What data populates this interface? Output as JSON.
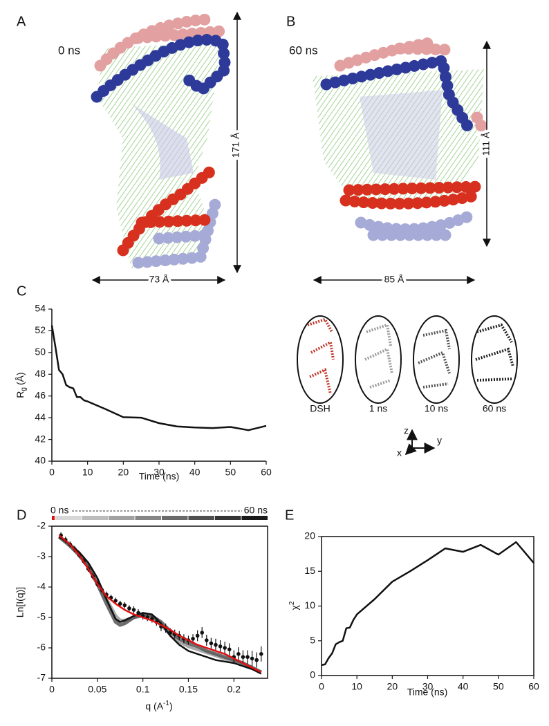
{
  "panels": {
    "a": {
      "label": "A",
      "time": "0 ns",
      "height": "171 Å",
      "width": "73 Å"
    },
    "b": {
      "label": "B",
      "time": "60 ns",
      "height": "111 Å",
      "width": "85 Å"
    },
    "c": "C",
    "d": "D",
    "e": "E"
  },
  "insets": {
    "labels": [
      "DSH",
      "1 ns",
      "10 ns",
      "60 ns"
    ],
    "axes": {
      "z": "z",
      "y": "y",
      "x": "x"
    }
  },
  "chart_data": [
    {
      "type": "line",
      "xlabel": "Time (ns)",
      "ylabel": {
        "base": "R",
        "sub": "g",
        "unit": "(Å)"
      },
      "xlim": [
        0,
        60
      ],
      "ylim": [
        40,
        54
      ],
      "xticks": [
        0,
        10,
        20,
        30,
        40,
        50,
        60
      ],
      "yticks": [
        40,
        42,
        44,
        46,
        48,
        50,
        52,
        54
      ],
      "series": [
        {
          "color": "#111111",
          "x": [
            0,
            1,
            2,
            3,
            4,
            5,
            6,
            7,
            8,
            9,
            10,
            15,
            20,
            25,
            30,
            35,
            40,
            45,
            50,
            55,
            60
          ],
          "values": [
            52.5,
            50.5,
            48.4,
            48.0,
            47.0,
            46.8,
            46.7,
            45.9,
            45.9,
            45.6,
            45.5,
            44.8,
            44.05,
            44.0,
            43.5,
            43.2,
            43.1,
            43.05,
            43.15,
            42.85,
            43.25
          ]
        }
      ]
    },
    {
      "type": "line",
      "xlabel": {
        "base": "q (A",
        "sup": "-1",
        "end": ")"
      },
      "ylabel": "Ln[I(q)]",
      "legend": {
        "start": "0 ns",
        "end": "60 ns"
      },
      "xlim": [
        0,
        0.237
      ],
      "ylim": [
        -7,
        -2
      ],
      "xticks": [
        0,
        0.05,
        0.1,
        0.15,
        0.2
      ],
      "yticks": [
        -7,
        -6,
        -5,
        -4,
        -3,
        -2
      ],
      "series": [
        {
          "color": "#999999",
          "x": [
            0.008,
            0.02,
            0.03,
            0.04,
            0.05,
            0.06,
            0.07,
            0.075,
            0.08,
            0.09,
            0.1,
            0.11,
            0.12,
            0.13,
            0.14,
            0.15,
            0.16,
            0.17,
            0.18,
            0.19,
            0.2,
            0.21,
            0.22,
            0.23
          ],
          "values": [
            -2.35,
            -2.6,
            -2.9,
            -3.3,
            -3.8,
            -4.4,
            -4.95,
            -5.1,
            -5.1,
            -5.0,
            -4.95,
            -5.0,
            -5.25,
            -5.55,
            -5.8,
            -5.95,
            -6.05,
            -6.15,
            -6.25,
            -6.35,
            -6.45,
            -6.55,
            -6.65,
            -6.8
          ]
        },
        {
          "color": "#555555",
          "x": [
            0.008,
            0.02,
            0.03,
            0.04,
            0.05,
            0.06,
            0.07,
            0.075,
            0.08,
            0.09,
            0.1,
            0.11,
            0.12,
            0.13,
            0.14,
            0.15,
            0.16,
            0.17,
            0.18,
            0.19,
            0.2,
            0.21,
            0.22,
            0.23
          ],
          "values": [
            -2.35,
            -2.65,
            -2.95,
            -3.35,
            -3.9,
            -4.55,
            -5.15,
            -5.25,
            -5.2,
            -5.0,
            -4.9,
            -4.95,
            -5.15,
            -5.45,
            -5.7,
            -5.85,
            -5.95,
            -6.1,
            -6.2,
            -6.3,
            -6.4,
            -6.5,
            -6.65,
            -6.8
          ]
        },
        {
          "color": "#111111",
          "x": [
            0.008,
            0.02,
            0.03,
            0.04,
            0.05,
            0.06,
            0.07,
            0.075,
            0.08,
            0.09,
            0.1,
            0.11,
            0.12,
            0.13,
            0.14,
            0.15,
            0.16,
            0.17,
            0.18,
            0.19,
            0.2,
            0.21,
            0.22,
            0.23
          ],
          "values": [
            -2.35,
            -2.6,
            -2.85,
            -3.2,
            -3.7,
            -4.4,
            -5.05,
            -5.15,
            -5.1,
            -4.95,
            -4.85,
            -4.9,
            -5.2,
            -5.6,
            -5.9,
            -6.1,
            -6.2,
            -6.3,
            -6.4,
            -6.45,
            -6.5,
            -6.6,
            -6.7,
            -6.85
          ]
        },
        {
          "color": "#111111",
          "x": [
            0.01,
            0.015,
            0.02,
            0.025,
            0.03,
            0.035,
            0.04,
            0.045,
            0.05,
            0.055,
            0.06,
            0.065,
            0.07,
            0.075,
            0.08,
            0.085,
            0.09,
            0.095,
            0.1,
            0.105,
            0.11,
            0.115,
            0.12,
            0.125,
            0.13,
            0.135,
            0.14,
            0.145,
            0.15,
            0.155,
            0.16,
            0.165,
            0.17,
            0.175,
            0.18,
            0.185,
            0.19,
            0.195,
            0.2,
            0.205,
            0.21,
            0.215,
            0.22,
            0.225,
            0.23
          ],
          "values": [
            -2.3,
            -2.45,
            -2.6,
            -2.75,
            -2.95,
            -3.15,
            -3.4,
            -3.65,
            -3.9,
            -4.1,
            -4.25,
            -4.35,
            -4.45,
            -4.55,
            -4.6,
            -4.7,
            -4.75,
            -4.85,
            -4.95,
            -5.0,
            -5.05,
            -5.15,
            -5.3,
            -5.35,
            -5.5,
            -5.55,
            -5.6,
            -5.7,
            -5.75,
            -5.7,
            -5.6,
            -5.5,
            -5.75,
            -5.85,
            -5.9,
            -5.95,
            -6.0,
            -6.05,
            -6.3,
            -6.2,
            -6.3,
            -6.3,
            -6.35,
            -6.4,
            -6.2
          ],
          "errors": [
            0.1,
            0.1,
            0.1,
            0.1,
            0.1,
            0.1,
            0.1,
            0.1,
            0.1,
            0.1,
            0.1,
            0.1,
            0.1,
            0.1,
            0.1,
            0.1,
            0.12,
            0.12,
            0.12,
            0.12,
            0.12,
            0.12,
            0.15,
            0.15,
            0.15,
            0.15,
            0.15,
            0.15,
            0.15,
            0.15,
            0.18,
            0.18,
            0.18,
            0.18,
            0.2,
            0.2,
            0.2,
            0.2,
            0.22,
            0.22,
            0.22,
            0.22,
            0.25,
            0.25,
            0.25
          ]
        },
        {
          "color": "#e01010",
          "x": [
            0.008,
            0.02,
            0.03,
            0.04,
            0.05,
            0.06,
            0.07,
            0.08,
            0.09,
            0.1,
            0.11,
            0.12,
            0.13,
            0.14,
            0.15,
            0.16,
            0.17,
            0.18,
            0.19,
            0.2,
            0.21,
            0.22,
            0.23
          ],
          "values": [
            -2.3,
            -2.6,
            -2.95,
            -3.4,
            -3.9,
            -4.3,
            -4.55,
            -4.75,
            -4.9,
            -5.0,
            -5.1,
            -5.25,
            -5.4,
            -5.6,
            -5.75,
            -5.9,
            -6.0,
            -6.1,
            -6.2,
            -6.35,
            -6.5,
            -6.65,
            -6.8
          ]
        }
      ]
    },
    {
      "type": "line",
      "xlabel": "Time (ns)",
      "ylabel": {
        "base": "χ",
        "sup": "2"
      },
      "xlim": [
        0,
        60
      ],
      "ylim": [
        0,
        20
      ],
      "xticks": [
        0,
        10,
        20,
        30,
        40,
        50,
        60
      ],
      "yticks": [
        0,
        5,
        10,
        15,
        20
      ],
      "series": [
        {
          "color": "#111111",
          "x": [
            0,
            1,
            2,
            3,
            4,
            5,
            6,
            7,
            8,
            9,
            10,
            15,
            20,
            25,
            30,
            35,
            40,
            45,
            50,
            55,
            60
          ],
          "values": [
            1.5,
            1.6,
            2.5,
            3.2,
            4.5,
            4.8,
            5.0,
            6.8,
            6.9,
            8.0,
            8.8,
            11.0,
            13.5,
            15.0,
            16.6,
            18.3,
            17.8,
            18.8,
            17.4,
            19.2,
            16.2
          ]
        }
      ]
    }
  ]
}
